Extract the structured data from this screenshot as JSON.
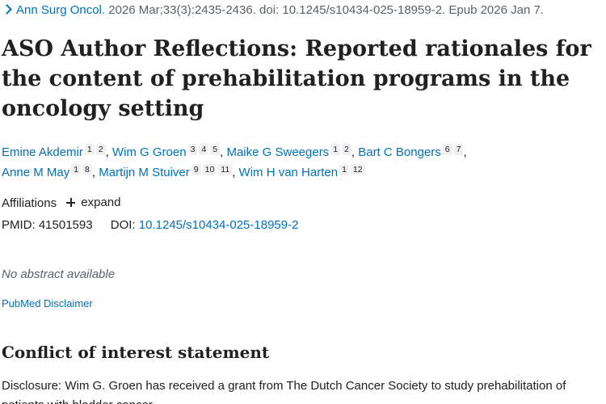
{
  "citation": {
    "journal": "Ann Surg Oncol.",
    "details": "2026 Mar;33(3):2435-2436. doi: 10.1245/s10434-025-18959-2. Epub 2026 Jan 7."
  },
  "title": "ASO Author Reflections: Reported rationales for the content of prehabilitation programs in the oncology setting",
  "authors": [
    {
      "name": "Emine Akdemir",
      "affiliations": [
        "1",
        "2"
      ]
    },
    {
      "name": "Wim G Groen",
      "affiliations": [
        "3",
        "4",
        "5"
      ]
    },
    {
      "name": "Maike G Sweegers",
      "affiliations": [
        "1",
        "2"
      ]
    },
    {
      "name": "Bart C Bongers",
      "affiliations": [
        "6",
        "7"
      ]
    },
    {
      "name": "Anne M May",
      "affiliations": [
        "1",
        "8"
      ]
    },
    {
      "name": "Martijn M Stuiver",
      "affiliations": [
        "9",
        "10",
        "11"
      ]
    },
    {
      "name": "Wim H van Harten",
      "affiliations": [
        "1",
        "12"
      ]
    }
  ],
  "affiliations_label": "Affiliations",
  "expand_label": "expand",
  "pmid_label": "PMID:",
  "pmid": "41501593",
  "doi_label": "DOI:",
  "doi": "10.1245/s10434-025-18959-2",
  "no_abstract": "No abstract available",
  "disclaimer": "PubMed Disclaimer",
  "coi_heading": "Conflict of interest statement",
  "coi_text": "Disclosure: Wim G. Groen has received a grant from The Dutch Cancer Society to study prehabilitation of patients with bladder cancer."
}
